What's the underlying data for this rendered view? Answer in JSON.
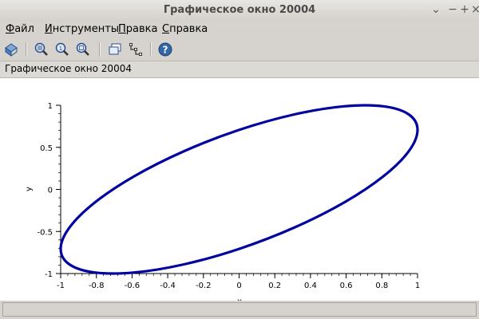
{
  "window": {
    "title": "Графическое окно 20004"
  },
  "menu": {
    "items": [
      {
        "label": "Файл",
        "mnemonic": "Ф",
        "rest": "айл"
      },
      {
        "label": "Инструменты",
        "mnemonic": "И",
        "rest": "нструменты"
      },
      {
        "label": "Правка",
        "mnemonic": "П",
        "rest": "равка"
      },
      {
        "label": "Справка",
        "mnemonic": "С",
        "rest": "правка"
      }
    ]
  },
  "toolbar": {
    "icons": [
      "rotate-icon",
      "zoom-area-icon",
      "zoom-reset-icon",
      "zoom-out-icon",
      "copy-figure-icon",
      "datatip-icon",
      "help-icon"
    ]
  },
  "info": {
    "text": "Графическое окно 20004"
  },
  "chart_data": {
    "type": "line",
    "xlabel": "x",
    "ylabel": "y",
    "xlim": [
      -1,
      1
    ],
    "ylim": [
      -1,
      1
    ],
    "xticks": [
      "-1",
      "-0.8",
      "-0.6",
      "-0.4",
      "-0.2",
      "0",
      "0.2",
      "0.4",
      "0.6",
      "0.8",
      "1"
    ],
    "yticks": [
      "1",
      "0.5",
      "0",
      "-0.5",
      "-1"
    ],
    "series": [
      {
        "color": "#0000a0",
        "x": [
          1.0,
          0.9511,
          0.809,
          0.5878,
          0.309,
          0.0,
          -0.309,
          -0.5878,
          -0.809,
          -0.9511,
          -1.0,
          -0.9511,
          -0.809,
          -0.5878,
          -0.309,
          0.0,
          0.309,
          0.5878,
          0.809,
          0.9511
        ],
        "y": [
          0.7071,
          0.891,
          0.9877,
          0.9877,
          0.891,
          0.7071,
          0.454,
          0.1564,
          -0.1564,
          -0.454,
          -0.7071,
          -0.891,
          -0.9877,
          -0.9877,
          -0.891,
          -0.7071,
          -0.454,
          -0.1564,
          0.1564,
          0.454
        ]
      }
    ]
  }
}
